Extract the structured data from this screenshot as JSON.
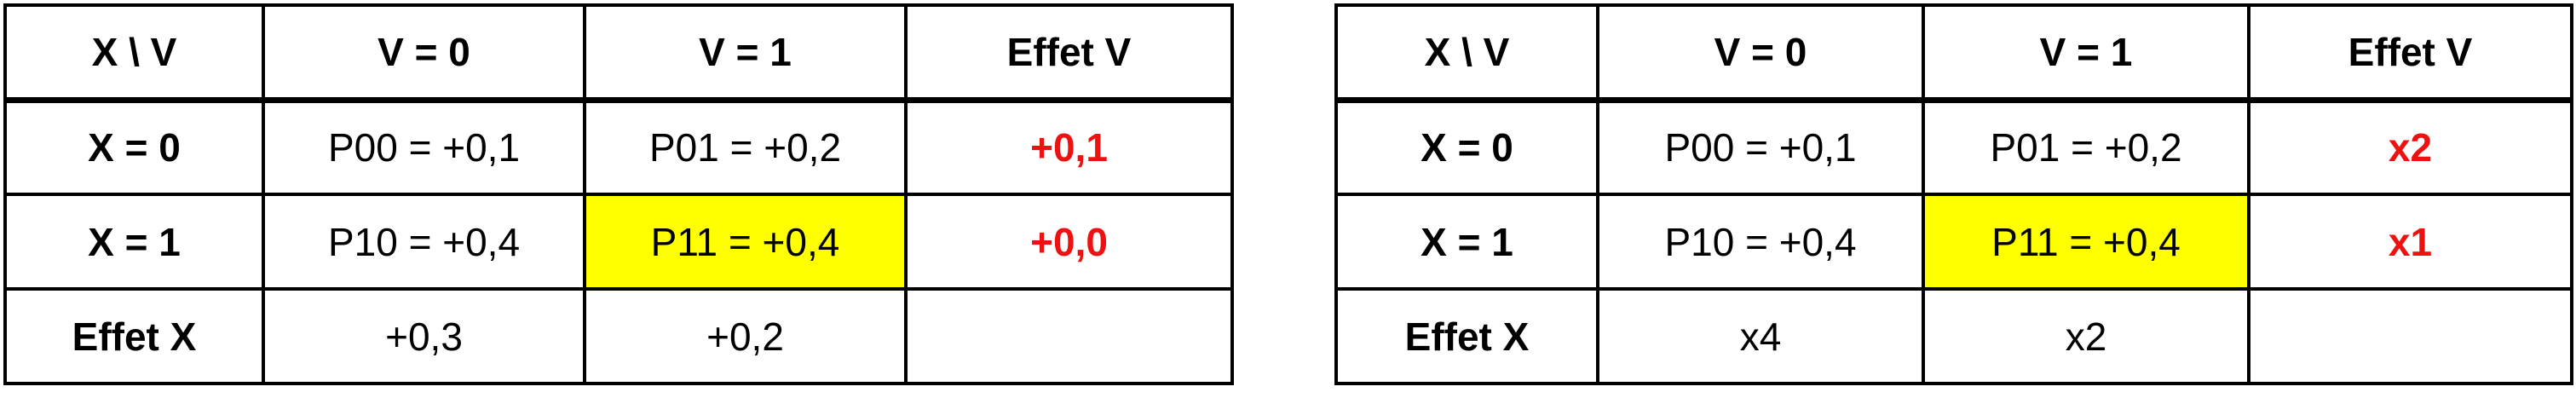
{
  "colors": {
    "highlight": "#ffff00",
    "effect_text": "#ee1111",
    "border": "#000000"
  },
  "tables": [
    {
      "headers": [
        "X \\ V",
        "V = 0",
        "V = 1",
        "Effet V"
      ],
      "rows": [
        {
          "label": "X = 0",
          "cells": [
            "P00 = +0,1",
            "P01 = +0,2"
          ],
          "effect": "+0,1"
        },
        {
          "label": "X = 1",
          "cells": [
            "P10 = +0,4",
            "P11 = +0,4"
          ],
          "effect": "+0,0"
        }
      ],
      "footer": {
        "label": "Effet X",
        "cells": [
          "+0,3",
          "+0,2"
        ],
        "last": ""
      }
    },
    {
      "headers": [
        "X \\ V",
        "V = 0",
        "V = 1",
        "Effet V"
      ],
      "rows": [
        {
          "label": "X = 0",
          "cells": [
            "P00 = +0,1",
            "P01 = +0,2"
          ],
          "effect": "x2"
        },
        {
          "label": "X = 1",
          "cells": [
            "P10 = +0,4",
            "P11 = +0,4"
          ],
          "effect": "x1"
        }
      ],
      "footer": {
        "label": "Effet X",
        "cells": [
          "x4",
          "x2"
        ],
        "last": ""
      }
    }
  ]
}
